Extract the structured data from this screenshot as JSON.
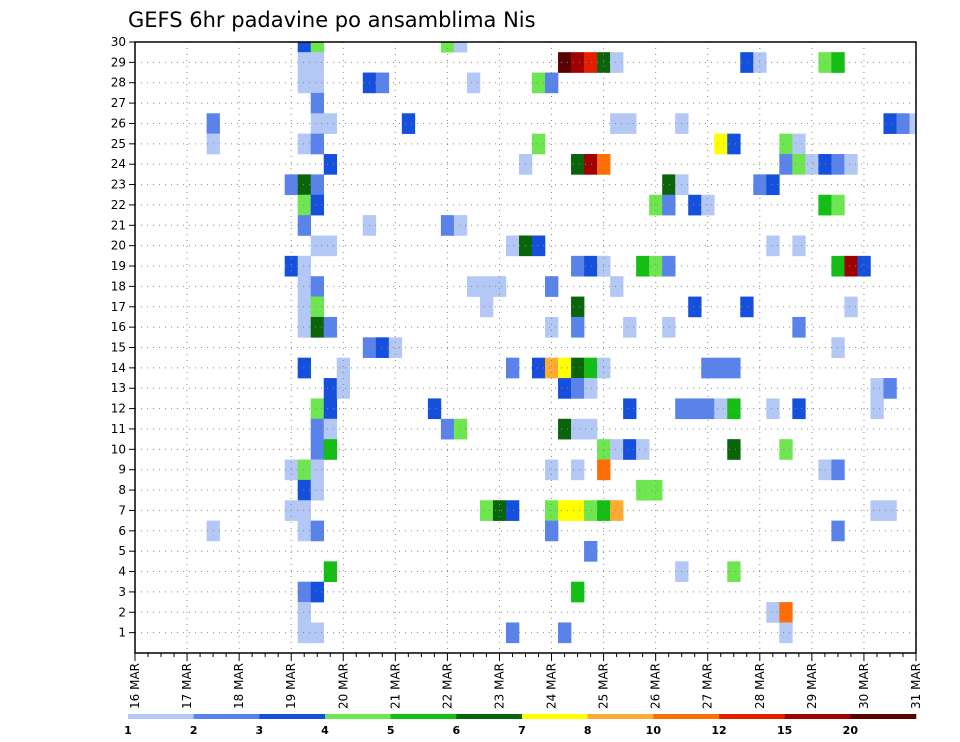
{
  "chart_data": {
    "type": "heatmap",
    "title": "GEFS 6hr padavine po ansamblima Nis",
    "xlabel": "",
    "ylabel": "",
    "x_tick_labels": [
      "16 MAR",
      "17 MAR",
      "18 MAR",
      "19 MAR",
      "20 MAR",
      "21 MAR",
      "22 MAR",
      "23 MAR",
      "24 MAR",
      "25 MAR",
      "26 MAR",
      "27 MAR",
      "28 MAR",
      "29 MAR",
      "30 MAR",
      "31 MAR"
    ],
    "y_tick_labels": [
      "1",
      "2",
      "3",
      "4",
      "5",
      "6",
      "7",
      "8",
      "9",
      "10",
      "11",
      "12",
      "13",
      "14",
      "15",
      "16",
      "17",
      "18",
      "19",
      "20",
      "21",
      "22",
      "23",
      "24",
      "25",
      "26",
      "27",
      "28",
      "29",
      "30"
    ],
    "xlim": [
      0,
      60
    ],
    "ylim": [
      0,
      30
    ],
    "time_steps_per_day": 4,
    "grid": "dotted",
    "colorbar": {
      "placement": "bottom",
      "labels": [
        "1",
        "2",
        "3",
        "4",
        "5",
        "6",
        "7",
        "8",
        "10",
        "12",
        "15",
        "20"
      ],
      "levels": [
        1,
        2,
        3,
        4,
        5,
        6,
        7,
        8,
        10,
        12,
        15,
        20
      ],
      "colors": [
        "#b4c8f5",
        "#5a82eb",
        "#1450dc",
        "#6ee650",
        "#14be14",
        "#0a640a",
        "#ffff00",
        "#ffaa32",
        "#ff6e00",
        "#e61e00",
        "#a00000",
        "#5a0000"
      ]
    },
    "values_note": "cells: [step, member, colour_index]",
    "cells": [
      [
        13,
        30,
        3
      ],
      [
        14,
        30,
        4
      ],
      [
        24,
        30,
        4
      ],
      [
        25,
        30,
        1
      ],
      [
        13,
        29,
        1
      ],
      [
        14,
        29,
        1
      ],
      [
        33,
        29,
        12
      ],
      [
        34,
        29,
        11
      ],
      [
        35,
        29,
        10
      ],
      [
        36,
        29,
        6
      ],
      [
        37,
        29,
        1
      ],
      [
        47,
        29,
        3
      ],
      [
        48,
        29,
        1
      ],
      [
        53,
        29,
        4
      ],
      [
        54,
        29,
        5
      ],
      [
        13,
        28,
        1
      ],
      [
        14,
        28,
        1
      ],
      [
        18,
        28,
        3
      ],
      [
        19,
        28,
        2
      ],
      [
        26,
        28,
        1
      ],
      [
        31,
        28,
        4
      ],
      [
        32,
        28,
        2
      ],
      [
        14,
        27,
        2
      ],
      [
        6,
        26,
        2
      ],
      [
        14,
        26,
        1
      ],
      [
        15,
        26,
        1
      ],
      [
        21,
        26,
        3
      ],
      [
        37,
        26,
        1
      ],
      [
        38,
        26,
        1
      ],
      [
        42,
        26,
        1
      ],
      [
        58,
        26,
        3
      ],
      [
        59,
        26,
        2
      ],
      [
        60,
        26,
        1
      ],
      [
        6,
        25,
        1
      ],
      [
        13,
        25,
        1
      ],
      [
        14,
        25,
        2
      ],
      [
        31,
        25,
        4
      ],
      [
        45,
        25,
        7
      ],
      [
        46,
        25,
        3
      ],
      [
        50,
        25,
        4
      ],
      [
        51,
        25,
        1
      ],
      [
        15,
        24,
        3
      ],
      [
        30,
        24,
        1
      ],
      [
        34,
        24,
        6
      ],
      [
        35,
        24,
        11
      ],
      [
        36,
        24,
        9
      ],
      [
        50,
        24,
        2
      ],
      [
        51,
        24,
        4
      ],
      [
        52,
        24,
        1
      ],
      [
        53,
        24,
        3
      ],
      [
        54,
        24,
        2
      ],
      [
        55,
        24,
        1
      ],
      [
        12,
        23,
        2
      ],
      [
        13,
        23,
        6
      ],
      [
        14,
        23,
        2
      ],
      [
        41,
        23,
        6
      ],
      [
        42,
        23,
        1
      ],
      [
        48,
        23,
        2
      ],
      [
        49,
        23,
        3
      ],
      [
        13,
        22,
        4
      ],
      [
        14,
        22,
        3
      ],
      [
        40,
        22,
        4
      ],
      [
        41,
        22,
        2
      ],
      [
        43,
        22,
        3
      ],
      [
        44,
        22,
        1
      ],
      [
        53,
        22,
        5
      ],
      [
        54,
        22,
        4
      ],
      [
        13,
        21,
        2
      ],
      [
        18,
        21,
        1
      ],
      [
        24,
        21,
        2
      ],
      [
        25,
        21,
        1
      ],
      [
        14,
        20,
        1
      ],
      [
        15,
        20,
        1
      ],
      [
        29,
        20,
        1
      ],
      [
        30,
        20,
        6
      ],
      [
        31,
        20,
        3
      ],
      [
        49,
        20,
        1
      ],
      [
        51,
        20,
        1
      ],
      [
        12,
        19,
        3
      ],
      [
        13,
        19,
        1
      ],
      [
        34,
        19,
        2
      ],
      [
        35,
        19,
        3
      ],
      [
        36,
        19,
        1
      ],
      [
        39,
        19,
        5
      ],
      [
        40,
        19,
        4
      ],
      [
        41,
        19,
        2
      ],
      [
        54,
        19,
        5
      ],
      [
        55,
        19,
        11
      ],
      [
        56,
        19,
        3
      ],
      [
        13,
        18,
        1
      ],
      [
        14,
        18,
        2
      ],
      [
        26,
        18,
        1
      ],
      [
        27,
        18,
        1
      ],
      [
        28,
        18,
        1
      ],
      [
        32,
        18,
        2
      ],
      [
        37,
        18,
        1
      ],
      [
        13,
        17,
        1
      ],
      [
        14,
        17,
        4
      ],
      [
        27,
        17,
        1
      ],
      [
        34,
        17,
        6
      ],
      [
        43,
        17,
        3
      ],
      [
        47,
        17,
        3
      ],
      [
        55,
        17,
        1
      ],
      [
        13,
        16,
        1
      ],
      [
        14,
        16,
        6
      ],
      [
        15,
        16,
        2
      ],
      [
        32,
        16,
        1
      ],
      [
        34,
        16,
        2
      ],
      [
        38,
        16,
        1
      ],
      [
        41,
        16,
        1
      ],
      [
        51,
        16,
        2
      ],
      [
        18,
        15,
        2
      ],
      [
        19,
        15,
        3
      ],
      [
        20,
        15,
        1
      ],
      [
        54,
        15,
        1
      ],
      [
        13,
        14,
        3
      ],
      [
        16,
        14,
        1
      ],
      [
        29,
        14,
        2
      ],
      [
        31,
        14,
        3
      ],
      [
        32,
        14,
        8
      ],
      [
        33,
        14,
        7
      ],
      [
        34,
        14,
        6
      ],
      [
        35,
        14,
        5
      ],
      [
        36,
        14,
        1
      ],
      [
        44,
        14,
        2
      ],
      [
        45,
        14,
        2
      ],
      [
        46,
        14,
        2
      ],
      [
        15,
        13,
        3
      ],
      [
        16,
        13,
        1
      ],
      [
        33,
        13,
        3
      ],
      [
        34,
        13,
        2
      ],
      [
        35,
        13,
        1
      ],
      [
        57,
        13,
        1
      ],
      [
        58,
        13,
        2
      ],
      [
        14,
        12,
        4
      ],
      [
        15,
        12,
        3
      ],
      [
        23,
        12,
        3
      ],
      [
        38,
        12,
        3
      ],
      [
        42,
        12,
        2
      ],
      [
        43,
        12,
        2
      ],
      [
        44,
        12,
        2
      ],
      [
        45,
        12,
        1
      ],
      [
        46,
        12,
        5
      ],
      [
        49,
        12,
        1
      ],
      [
        51,
        12,
        3
      ],
      [
        57,
        12,
        1
      ],
      [
        14,
        11,
        2
      ],
      [
        15,
        11,
        1
      ],
      [
        24,
        11,
        2
      ],
      [
        25,
        11,
        4
      ],
      [
        33,
        11,
        6
      ],
      [
        34,
        11,
        1
      ],
      [
        35,
        11,
        1
      ],
      [
        14,
        10,
        2
      ],
      [
        15,
        10,
        5
      ],
      [
        36,
        10,
        4
      ],
      [
        37,
        10,
        1
      ],
      [
        38,
        10,
        3
      ],
      [
        39,
        10,
        1
      ],
      [
        46,
        10,
        6
      ],
      [
        50,
        10,
        4
      ],
      [
        12,
        9,
        1
      ],
      [
        13,
        9,
        4
      ],
      [
        14,
        9,
        1
      ],
      [
        32,
        9,
        1
      ],
      [
        34,
        9,
        1
      ],
      [
        36,
        9,
        9
      ],
      [
        53,
        9,
        1
      ],
      [
        54,
        9,
        2
      ],
      [
        13,
        8,
        3
      ],
      [
        14,
        8,
        1
      ],
      [
        39,
        8,
        4
      ],
      [
        40,
        8,
        4
      ],
      [
        12,
        7,
        1
      ],
      [
        13,
        7,
        1
      ],
      [
        27,
        7,
        4
      ],
      [
        28,
        7,
        6
      ],
      [
        29,
        7,
        3
      ],
      [
        32,
        7,
        4
      ],
      [
        33,
        7,
        7
      ],
      [
        34,
        7,
        7
      ],
      [
        35,
        7,
        4
      ],
      [
        36,
        7,
        5
      ],
      [
        37,
        7,
        8
      ],
      [
        57,
        7,
        1
      ],
      [
        58,
        7,
        1
      ],
      [
        6,
        6,
        1
      ],
      [
        13,
        6,
        1
      ],
      [
        14,
        6,
        2
      ],
      [
        32,
        6,
        2
      ],
      [
        54,
        6,
        2
      ],
      [
        35,
        5,
        2
      ],
      [
        15,
        4,
        5
      ],
      [
        42,
        4,
        1
      ],
      [
        46,
        4,
        4
      ],
      [
        13,
        3,
        2
      ],
      [
        14,
        3,
        3
      ],
      [
        34,
        3,
        5
      ],
      [
        13,
        2,
        1
      ],
      [
        49,
        2,
        1
      ],
      [
        50,
        2,
        9
      ],
      [
        13,
        1,
        1
      ],
      [
        14,
        1,
        1
      ],
      [
        29,
        1,
        2
      ],
      [
        33,
        1,
        2
      ],
      [
        50,
        1,
        1
      ]
    ]
  }
}
